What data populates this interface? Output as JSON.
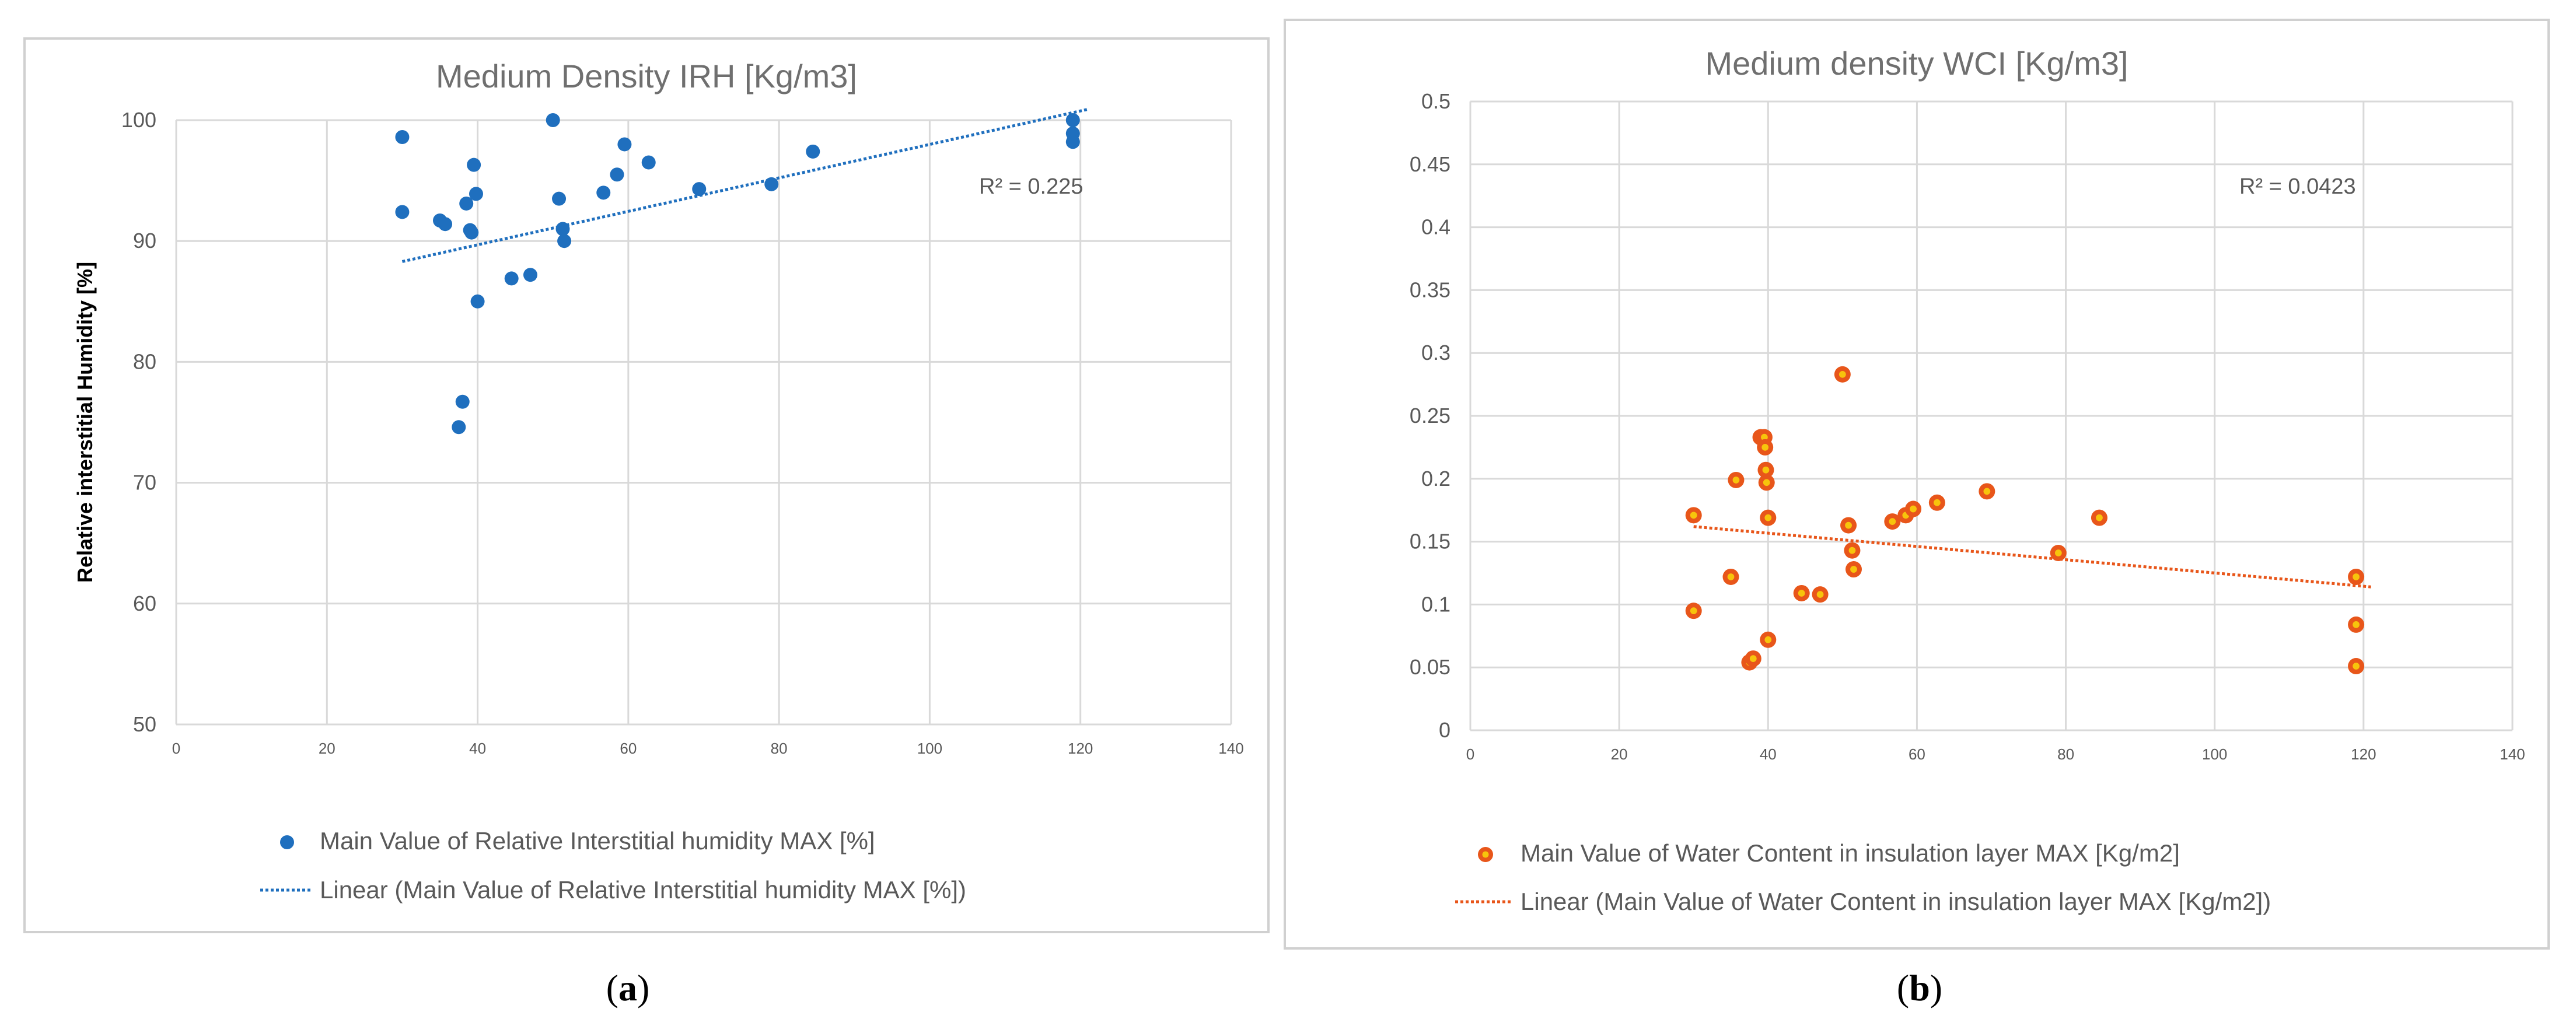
{
  "colors": {
    "series_a": "#1f6fbe",
    "series_b_fill": "#e8561a",
    "series_b_center": "#f7c40c",
    "grid": "#d9d9d9",
    "frame": "#d0d0d0"
  },
  "chart_data": [
    {
      "type": "scatter",
      "caption": "a",
      "title": "Medium Density IRH [Kg/m3]",
      "xlabel": "",
      "ylabel": "Relative interstitial Humidity [%]",
      "xlim": [
        0,
        140
      ],
      "ylim": [
        50,
        100
      ],
      "x_ticks": [
        0,
        20,
        40,
        60,
        80,
        100,
        120,
        140
      ],
      "y_ticks": [
        50,
        60,
        70,
        80,
        90,
        100
      ],
      "grid": true,
      "legend_position": "bottom",
      "series": [
        {
          "name": "Main Value of Relative Interstitial humidity MAX [%]",
          "points": [
            [
              30,
              98.6
            ],
            [
              30,
              92.4
            ],
            [
              35,
              91.7
            ],
            [
              35.7,
              91.4
            ],
            [
              38.5,
              93.1
            ],
            [
              39,
              90.9
            ],
            [
              39.2,
              90.7
            ],
            [
              39.5,
              96.3
            ],
            [
              39.8,
              93.9
            ],
            [
              40,
              85
            ],
            [
              37.5,
              74.6
            ],
            [
              38,
              76.7
            ],
            [
              44.5,
              86.9
            ],
            [
              47,
              87.2
            ],
            [
              50,
              100
            ],
            [
              50.8,
              93.5
            ],
            [
              51.3,
              91
            ],
            [
              51.5,
              90
            ],
            [
              56.7,
              94
            ],
            [
              58.5,
              95.5
            ],
            [
              59.5,
              98
            ],
            [
              62.7,
              96.5
            ],
            [
              69.4,
              94.3
            ],
            [
              79,
              94.7
            ],
            [
              84.5,
              97.4
            ],
            [
              119,
              100
            ],
            [
              119,
              98.9
            ],
            [
              119,
              98.2
            ]
          ]
        }
      ],
      "trendline": {
        "name": "Linear (Main Value of Relative Interstitial humidity MAX [%])",
        "from": [
          30,
          88.3
        ],
        "to": [
          121,
          100.9
        ]
      },
      "annotation": "R² = 0.225"
    },
    {
      "type": "scatter",
      "caption": "b",
      "title": "Medium density WCI [Kg/m3]",
      "xlabel": "",
      "ylabel": "",
      "xlim": [
        0,
        140
      ],
      "ylim": [
        0,
        0.5
      ],
      "x_ticks": [
        0,
        20,
        40,
        60,
        80,
        100,
        120,
        140
      ],
      "y_ticks": [
        "0",
        "0.05",
        "0.1",
        "0.15",
        "0.2",
        "0.25",
        "0.3",
        "0.35",
        "0.4",
        "0.45",
        "0.5"
      ],
      "grid": true,
      "legend_position": "bottom",
      "series": [
        {
          "name": "Main Value of Water Content in insulation layer MAX [Kg/m2]",
          "points": [
            [
              30,
              0.171
            ],
            [
              30,
              0.095
            ],
            [
              35,
              0.122
            ],
            [
              35.7,
              0.199
            ],
            [
              37.5,
              0.054
            ],
            [
              38,
              0.057
            ],
            [
              39,
              0.233
            ],
            [
              39.5,
              0.233
            ],
            [
              39.6,
              0.225
            ],
            [
              39.7,
              0.207
            ],
            [
              39.8,
              0.197
            ],
            [
              40,
              0.169
            ],
            [
              40,
              0.072
            ],
            [
              44.5,
              0.109
            ],
            [
              47,
              0.108
            ],
            [
              50,
              0.283
            ],
            [
              50.8,
              0.163
            ],
            [
              51.3,
              0.143
            ],
            [
              51.5,
              0.128
            ],
            [
              56.7,
              0.166
            ],
            [
              58.5,
              0.171
            ],
            [
              59.5,
              0.176
            ],
            [
              62.7,
              0.181
            ],
            [
              69.4,
              0.19
            ],
            [
              79,
              0.141
            ],
            [
              84.5,
              0.169
            ],
            [
              119,
              0.122
            ],
            [
              119,
              0.084
            ],
            [
              119,
              0.051
            ]
          ]
        }
      ],
      "trendline": {
        "name": "Linear (Main Value of Water Content in insulation layer MAX [Kg/m2])",
        "from": [
          30,
          0.162
        ],
        "to": [
          121,
          0.114
        ]
      },
      "annotation": "R² = 0.0423"
    }
  ]
}
